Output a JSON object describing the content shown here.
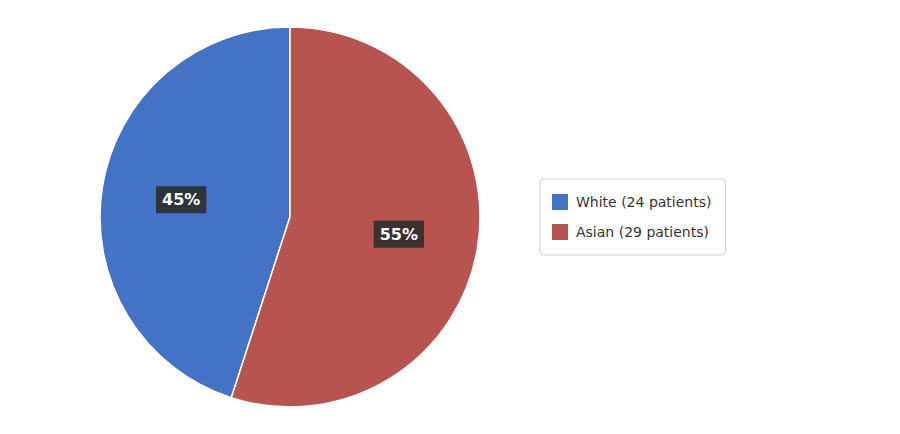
{
  "chart_data": {
    "type": "pie",
    "categories": [
      "White (24 patients)",
      "Asian (29 patients)"
    ],
    "values": [
      45,
      55
    ],
    "value_labels": [
      "45%",
      "55%"
    ],
    "colors": [
      "#4472C4",
      "#B85450"
    ],
    "data_labels": true,
    "legend": "right"
  }
}
